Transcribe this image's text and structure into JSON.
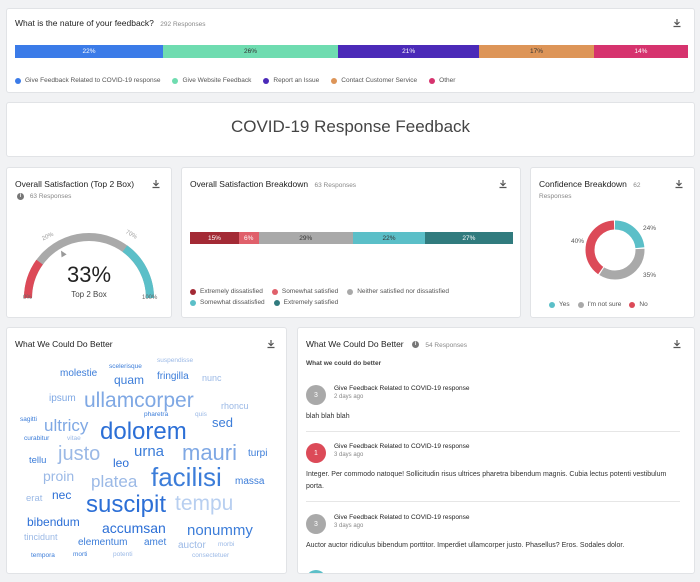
{
  "nature": {
    "title": "What is the nature of your feedback?",
    "responses": "292 Responses",
    "segments": [
      {
        "label": "22%",
        "value": 22,
        "color": "#3b7be8"
      },
      {
        "label": "26%",
        "value": 26,
        "color": "#6fdcb0"
      },
      {
        "label": "21%",
        "value": 21,
        "color": "#4b2ab8"
      },
      {
        "label": "17%",
        "value": 17,
        "color": "#dd9558"
      },
      {
        "label": "14%",
        "value": 14,
        "color": "#d6336e"
      }
    ],
    "legend": [
      "Give Feedback Related to COVID-19 response",
      "Give Website Feedback",
      "Report an Issue",
      "Contact Customer Service",
      "Other"
    ]
  },
  "banner": {
    "title": "COVID-19 Response Feedback"
  },
  "satisfaction": {
    "title": "Overall Satisfaction (Top 2 Box)",
    "responses": "63 Responses",
    "value": "33%",
    "caption": "Top 2 Box",
    "marker_left": "20%",
    "marker_right": "70%",
    "axis_min": "0%",
    "axis_max": "100%",
    "gauge_value": 33
  },
  "breakdown": {
    "title": "Overall Satisfaction Breakdown",
    "responses": "63 Responses",
    "segments": [
      {
        "label": "15%",
        "value": 15,
        "color": "#a32a35"
      },
      {
        "label": "6%",
        "value": 6,
        "color": "#e0606b"
      },
      {
        "label": "29%",
        "value": 29,
        "color": "#a9a9a9"
      },
      {
        "label": "22%",
        "value": 22,
        "color": "#5bbfc8"
      },
      {
        "label": "27%",
        "value": 27,
        "color": "#317b7e"
      }
    ],
    "legend": [
      "Extremely dissatisfied",
      "Somewhat satisfied",
      "Neither satisfied nor dissatisfied",
      "Somewhat dissatisfied",
      "Extremely satisfied"
    ],
    "legend_colors": [
      "#a32a35",
      "#e0606b",
      "#a9a9a9",
      "#5bbfc8",
      "#317b7e"
    ]
  },
  "confidence": {
    "title": "Confidence Breakdown",
    "count": "62",
    "responses": "Responses",
    "slices": [
      {
        "label": "24%",
        "value": 24,
        "color": "#5bbfc8"
      },
      {
        "label": "35%",
        "value": 35,
        "color": "#a9a9a9"
      },
      {
        "label": "40%",
        "value": 40,
        "color": "#dc4a58"
      }
    ],
    "legend": [
      "Yes",
      "I'm not sure",
      "No"
    ]
  },
  "wordcloud": {
    "title": "What We Could Do Better",
    "words": [
      "suspendisse",
      "scelerisque",
      "molestie",
      "quam",
      "fringilla",
      "nunc",
      "ullamcorper",
      "ipsum",
      "pharetra",
      "quis",
      "rhoncu",
      "sagitti",
      "ultricy",
      "dolorem",
      "sed",
      "curabitur",
      "vitae",
      "proin",
      "justo",
      "urna",
      "mauri",
      "turpi",
      "tellu",
      "leo",
      "facilisi",
      "massa",
      "platea",
      "erat",
      "nec",
      "suscipit",
      "tempu",
      "bibendum",
      "accumsan",
      "nonummy",
      "tincidunt",
      "elementum",
      "amet",
      "auctor",
      "morbi",
      "tempora",
      "morti",
      "potenti",
      "consectetuer"
    ]
  },
  "responses": {
    "title": "What We Could Do Better",
    "count": "54 Responses",
    "question": "What we could do better",
    "items": [
      {
        "score": "3",
        "category": "Give Feedback Related to COVID-19 response",
        "date": "2 days ago",
        "text": "blah blah blah",
        "color": "#a9a9a9"
      },
      {
        "score": "1",
        "category": "Give Feedback Related to COVID-19 response",
        "date": "3 days ago",
        "text": "Integer. Per commodo natoque! Sollicitudin risus ultrices pharetra bibendum magnis. Cubia lectus potenti vestibulum porta.",
        "color": "#dc4a58"
      },
      {
        "score": "3",
        "category": "Give Feedback Related to COVID-19 response",
        "date": "3 days ago",
        "text": "Auctor auctor ridiculus bibendum porttitor. Imperdiet ullamcorper justo. Phasellus? Eros. Sodales dolor.",
        "color": "#a9a9a9"
      }
    ]
  }
}
